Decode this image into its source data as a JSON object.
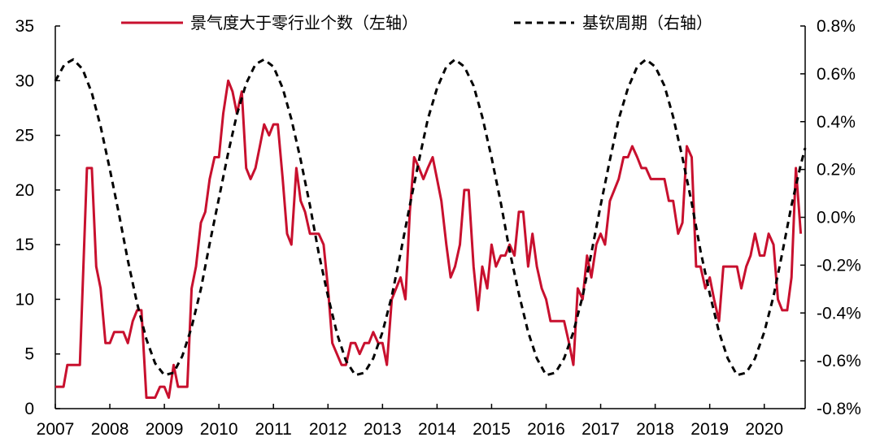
{
  "chart_data": {
    "type": "line",
    "colors": {
      "left_series": "#c8102e",
      "right_series": "#000000"
    },
    "left_axis": {
      "ylim": [
        0,
        35
      ],
      "ticks": [
        "0",
        "5",
        "10",
        "15",
        "20",
        "25",
        "30",
        "35"
      ]
    },
    "right_axis": {
      "ylim": [
        -0.8,
        0.8
      ],
      "ticks": [
        "-0.8%",
        "-0.6%",
        "-0.4%",
        "-0.2%",
        "0.0%",
        "0.2%",
        "0.4%",
        "0.6%",
        "0.8%"
      ]
    },
    "x_axis": {
      "xlim": [
        2007,
        2020.75
      ],
      "ticks": [
        "2007",
        "2008",
        "2009",
        "2010",
        "2011",
        "2012",
        "2013",
        "2014",
        "2015",
        "2016",
        "2017",
        "2018",
        "2019",
        "2020"
      ]
    },
    "legend": {
      "position": "top-center"
    },
    "series": [
      {
        "name": "景气度大于零行业个数（左轴）",
        "axis": "left",
        "style": "solid",
        "points": [
          [
            2007.0,
            2
          ],
          [
            2007.15,
            2
          ],
          [
            2007.22,
            4
          ],
          [
            2007.45,
            4
          ],
          [
            2007.58,
            22
          ],
          [
            2007.67,
            22
          ],
          [
            2007.75,
            13
          ],
          [
            2007.83,
            11
          ],
          [
            2007.92,
            6
          ],
          [
            2008.0,
            6
          ],
          [
            2008.08,
            7
          ],
          [
            2008.25,
            7
          ],
          [
            2008.33,
            6
          ],
          [
            2008.42,
            8
          ],
          [
            2008.5,
            9
          ],
          [
            2008.58,
            9
          ],
          [
            2008.67,
            1
          ],
          [
            2008.83,
            1
          ],
          [
            2008.92,
            2
          ],
          [
            2009.0,
            2
          ],
          [
            2009.08,
            1
          ],
          [
            2009.17,
            4
          ],
          [
            2009.25,
            2
          ],
          [
            2009.42,
            2
          ],
          [
            2009.5,
            11
          ],
          [
            2009.58,
            13
          ],
          [
            2009.67,
            17
          ],
          [
            2009.75,
            18
          ],
          [
            2009.83,
            21
          ],
          [
            2009.92,
            23
          ],
          [
            2010.0,
            23
          ],
          [
            2010.08,
            27
          ],
          [
            2010.17,
            30
          ],
          [
            2010.25,
            29
          ],
          [
            2010.33,
            27
          ],
          [
            2010.42,
            29
          ],
          [
            2010.5,
            22
          ],
          [
            2010.58,
            21
          ],
          [
            2010.67,
            22
          ],
          [
            2010.75,
            24
          ],
          [
            2010.83,
            26
          ],
          [
            2010.92,
            25
          ],
          [
            2011.0,
            26
          ],
          [
            2011.08,
            26
          ],
          [
            2011.17,
            21
          ],
          [
            2011.25,
            16
          ],
          [
            2011.33,
            15
          ],
          [
            2011.42,
            22
          ],
          [
            2011.5,
            19
          ],
          [
            2011.58,
            18
          ],
          [
            2011.67,
            16
          ],
          [
            2011.83,
            16
          ],
          [
            2011.92,
            15
          ],
          [
            2012.0,
            11
          ],
          [
            2012.08,
            6
          ],
          [
            2012.25,
            4
          ],
          [
            2012.33,
            4
          ],
          [
            2012.42,
            6
          ],
          [
            2012.5,
            6
          ],
          [
            2012.58,
            5
          ],
          [
            2012.67,
            6
          ],
          [
            2012.75,
            6
          ],
          [
            2012.83,
            7
          ],
          [
            2012.92,
            6
          ],
          [
            2013.0,
            6
          ],
          [
            2013.08,
            4
          ],
          [
            2013.17,
            10
          ],
          [
            2013.25,
            11
          ],
          [
            2013.33,
            12
          ],
          [
            2013.42,
            10
          ],
          [
            2013.5,
            18
          ],
          [
            2013.58,
            23
          ],
          [
            2013.67,
            22
          ],
          [
            2013.75,
            21
          ],
          [
            2013.83,
            22
          ],
          [
            2013.92,
            23
          ],
          [
            2014.0,
            21
          ],
          [
            2014.08,
            19
          ],
          [
            2014.17,
            15
          ],
          [
            2014.25,
            12
          ],
          [
            2014.33,
            13
          ],
          [
            2014.42,
            15
          ],
          [
            2014.5,
            20
          ],
          [
            2014.58,
            20
          ],
          [
            2014.67,
            13
          ],
          [
            2014.75,
            9
          ],
          [
            2014.83,
            13
          ],
          [
            2014.92,
            11
          ],
          [
            2015.0,
            15
          ],
          [
            2015.08,
            13
          ],
          [
            2015.17,
            14
          ],
          [
            2015.25,
            14
          ],
          [
            2015.33,
            15
          ],
          [
            2015.42,
            14
          ],
          [
            2015.5,
            18
          ],
          [
            2015.58,
            18
          ],
          [
            2015.67,
            13
          ],
          [
            2015.75,
            16
          ],
          [
            2015.83,
            13
          ],
          [
            2015.92,
            11
          ],
          [
            2016.0,
            10
          ],
          [
            2016.08,
            8
          ],
          [
            2016.17,
            8
          ],
          [
            2016.25,
            8
          ],
          [
            2016.33,
            8
          ],
          [
            2016.42,
            6
          ],
          [
            2016.5,
            4
          ],
          [
            2016.58,
            11
          ],
          [
            2016.67,
            10
          ],
          [
            2016.75,
            14
          ],
          [
            2016.83,
            12
          ],
          [
            2016.92,
            15
          ],
          [
            2017.0,
            16
          ],
          [
            2017.08,
            15
          ],
          [
            2017.17,
            19
          ],
          [
            2017.25,
            20
          ],
          [
            2017.33,
            21
          ],
          [
            2017.42,
            23
          ],
          [
            2017.5,
            23
          ],
          [
            2017.58,
            24
          ],
          [
            2017.67,
            23
          ],
          [
            2017.75,
            22
          ],
          [
            2017.83,
            22
          ],
          [
            2017.92,
            21
          ],
          [
            2018.0,
            21
          ],
          [
            2018.08,
            21
          ],
          [
            2018.17,
            21
          ],
          [
            2018.25,
            19
          ],
          [
            2018.33,
            19
          ],
          [
            2018.42,
            16
          ],
          [
            2018.5,
            17
          ],
          [
            2018.58,
            24
          ],
          [
            2018.67,
            23
          ],
          [
            2018.75,
            13
          ],
          [
            2018.83,
            13
          ],
          [
            2018.92,
            11
          ],
          [
            2019.0,
            12
          ],
          [
            2019.08,
            10
          ],
          [
            2019.17,
            8
          ],
          [
            2019.25,
            13
          ],
          [
            2019.33,
            13
          ],
          [
            2019.42,
            13
          ],
          [
            2019.5,
            13
          ],
          [
            2019.58,
            11
          ],
          [
            2019.67,
            13
          ],
          [
            2019.75,
            14
          ],
          [
            2019.83,
            16
          ],
          [
            2019.92,
            14
          ],
          [
            2020.0,
            14
          ],
          [
            2020.08,
            16
          ],
          [
            2020.17,
            15
          ],
          [
            2020.25,
            10
          ],
          [
            2020.33,
            9
          ],
          [
            2020.42,
            9
          ],
          [
            2020.5,
            12
          ],
          [
            2020.58,
            22
          ],
          [
            2020.67,
            16
          ]
        ]
      },
      {
        "name": "基钦周期（右轴）",
        "axis": "right",
        "style": "dashed",
        "points": [
          [
            2007.0,
            0.57
          ],
          [
            2007.17,
            0.64
          ],
          [
            2007.33,
            0.66
          ],
          [
            2007.5,
            0.62
          ],
          [
            2007.67,
            0.52
          ],
          [
            2007.83,
            0.38
          ],
          [
            2008.0,
            0.2
          ],
          [
            2008.17,
            0.01
          ],
          [
            2008.33,
            -0.18
          ],
          [
            2008.5,
            -0.36
          ],
          [
            2008.67,
            -0.51
          ],
          [
            2008.83,
            -0.61
          ],
          [
            2009.0,
            -0.66
          ],
          [
            2009.17,
            -0.65
          ],
          [
            2009.33,
            -0.58
          ],
          [
            2009.5,
            -0.46
          ],
          [
            2009.67,
            -0.3
          ],
          [
            2009.83,
            -0.11
          ],
          [
            2010.0,
            0.08
          ],
          [
            2010.17,
            0.27
          ],
          [
            2010.33,
            0.43
          ],
          [
            2010.5,
            0.56
          ],
          [
            2010.67,
            0.64
          ],
          [
            2010.83,
            0.66
          ],
          [
            2011.0,
            0.63
          ],
          [
            2011.17,
            0.54
          ],
          [
            2011.33,
            0.41
          ],
          [
            2011.5,
            0.24
          ],
          [
            2011.67,
            0.05
          ],
          [
            2011.83,
            -0.15
          ],
          [
            2012.0,
            -0.33
          ],
          [
            2012.17,
            -0.49
          ],
          [
            2012.33,
            -0.6
          ],
          [
            2012.5,
            -0.66
          ],
          [
            2012.67,
            -0.65
          ],
          [
            2012.83,
            -0.59
          ],
          [
            2013.0,
            -0.48
          ],
          [
            2013.17,
            -0.33
          ],
          [
            2013.33,
            -0.15
          ],
          [
            2013.5,
            0.05
          ],
          [
            2013.67,
            0.24
          ],
          [
            2013.83,
            0.41
          ],
          [
            2014.0,
            0.54
          ],
          [
            2014.17,
            0.63
          ],
          [
            2014.33,
            0.66
          ],
          [
            2014.5,
            0.63
          ],
          [
            2014.67,
            0.55
          ],
          [
            2014.83,
            0.42
          ],
          [
            2015.0,
            0.25
          ],
          [
            2015.17,
            0.06
          ],
          [
            2015.33,
            -0.14
          ],
          [
            2015.5,
            -0.32
          ],
          [
            2015.67,
            -0.48
          ],
          [
            2015.83,
            -0.59
          ],
          [
            2016.0,
            -0.66
          ],
          [
            2016.17,
            -0.65
          ],
          [
            2016.33,
            -0.59
          ],
          [
            2016.5,
            -0.48
          ],
          [
            2016.67,
            -0.33
          ],
          [
            2016.83,
            -0.15
          ],
          [
            2017.0,
            0.05
          ],
          [
            2017.17,
            0.24
          ],
          [
            2017.33,
            0.41
          ],
          [
            2017.5,
            0.54
          ],
          [
            2017.67,
            0.63
          ],
          [
            2017.83,
            0.66
          ],
          [
            2018.0,
            0.63
          ],
          [
            2018.17,
            0.55
          ],
          [
            2018.33,
            0.42
          ],
          [
            2018.5,
            0.25
          ],
          [
            2018.67,
            0.06
          ],
          [
            2018.83,
            -0.14
          ],
          [
            2019.0,
            -0.32
          ],
          [
            2019.17,
            -0.48
          ],
          [
            2019.33,
            -0.59
          ],
          [
            2019.5,
            -0.66
          ],
          [
            2019.67,
            -0.65
          ],
          [
            2019.83,
            -0.59
          ],
          [
            2020.0,
            -0.48
          ],
          [
            2020.17,
            -0.33
          ],
          [
            2020.33,
            -0.15
          ],
          [
            2020.5,
            0.05
          ],
          [
            2020.67,
            0.22
          ],
          [
            2020.75,
            0.29
          ]
        ]
      }
    ]
  }
}
